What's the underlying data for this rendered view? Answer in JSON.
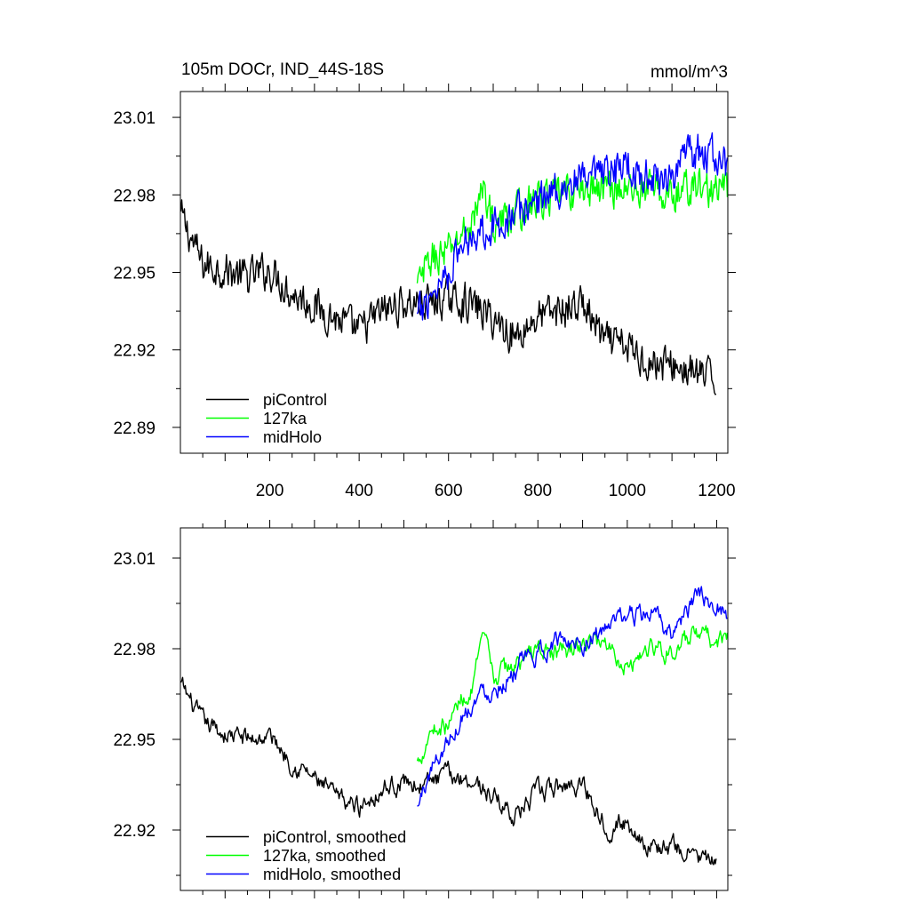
{
  "chart_data": [
    {
      "type": "line",
      "title": "105m DOCr, IND_44S-18S",
      "units": "mmol/m^3",
      "xlabel": "",
      "ylabel": "",
      "xlim": [
        0,
        1225
      ],
      "ylim": [
        22.88,
        23.02
      ],
      "x_ticks": [
        200,
        400,
        600,
        800,
        1000,
        1200
      ],
      "x_tick_labels": [
        "200",
        "400",
        "600",
        "800",
        "1000",
        "1200"
      ],
      "y_ticks": [
        22.89,
        22.92,
        22.95,
        22.98,
        23.01
      ],
      "y_tick_labels": [
        "22.89",
        "22.92",
        "22.95",
        "22.98",
        "23.01"
      ],
      "legend_position": "bottom-left",
      "series": [
        {
          "name": "piControl",
          "color": "#000000",
          "x": [
            1,
            50,
            100,
            150,
            200,
            250,
            300,
            350,
            400,
            450,
            500,
            550,
            600,
            650,
            700,
            750,
            800,
            850,
            900,
            950,
            1000,
            1050,
            1100,
            1150,
            1200
          ],
          "y": [
            22.972,
            22.953,
            22.951,
            22.948,
            22.951,
            22.942,
            22.937,
            22.932,
            22.927,
            22.935,
            22.938,
            22.938,
            22.94,
            22.938,
            22.932,
            22.925,
            22.933,
            22.935,
            22.938,
            22.923,
            22.921,
            22.915,
            22.914,
            22.911,
            22.908
          ]
        },
        {
          "name": "127ka",
          "color": "#00ff00",
          "x": [
            530,
            560,
            600,
            630,
            650,
            680,
            700,
            750,
            800,
            850,
            900,
            950,
            1000,
            1050,
            1100,
            1150,
            1200,
            1225
          ],
          "y": [
            22.944,
            22.955,
            22.958,
            22.965,
            22.968,
            22.983,
            22.968,
            22.973,
            22.978,
            22.98,
            22.982,
            22.983,
            22.982,
            22.983,
            22.979,
            22.984,
            22.981,
            22.983
          ]
        },
        {
          "name": "midHolo",
          "color": "#0000ff",
          "x": [
            530,
            560,
            600,
            630,
            650,
            680,
            700,
            750,
            800,
            850,
            900,
            950,
            1000,
            1050,
            1100,
            1150,
            1200,
            1225
          ],
          "y": [
            22.932,
            22.942,
            22.951,
            22.96,
            22.965,
            22.967,
            22.968,
            22.973,
            22.978,
            22.983,
            22.985,
            22.987,
            22.992,
            22.986,
            22.988,
            22.997,
            22.995,
            22.99
          ]
        }
      ]
    },
    {
      "type": "line",
      "title": "",
      "xlabel": "",
      "ylabel": "",
      "xlim": [
        0,
        1225
      ],
      "ylim": [
        22.9,
        23.02
      ],
      "x_ticks": [
        200,
        400,
        600,
        800,
        1000,
        1200
      ],
      "y_ticks": [
        22.92,
        22.95,
        22.98,
        23.01
      ],
      "y_tick_labels": [
        "22.92",
        "22.95",
        "22.98",
        "23.01"
      ],
      "legend_position": "bottom-left",
      "series": [
        {
          "name": "piControl, smoothed",
          "color": "#000000",
          "x": [
            1,
            50,
            100,
            150,
            200,
            250,
            300,
            350,
            400,
            450,
            500,
            550,
            600,
            650,
            700,
            750,
            800,
            850,
            900,
            950,
            1000,
            1050,
            1100,
            1150,
            1200
          ],
          "y": [
            22.968,
            22.955,
            22.952,
            22.95,
            22.951,
            22.943,
            22.937,
            22.93,
            22.928,
            22.934,
            22.936,
            22.935,
            22.938,
            22.937,
            22.931,
            22.925,
            22.932,
            22.934,
            22.936,
            22.922,
            22.922,
            22.915,
            22.914,
            22.912,
            22.908
          ]
        },
        {
          "name": "127ka, smoothed",
          "color": "#00ff00",
          "x": [
            530,
            560,
            600,
            630,
            650,
            680,
            700,
            750,
            800,
            850,
            900,
            950,
            1000,
            1050,
            1100,
            1150,
            1200,
            1225
          ],
          "y": [
            22.942,
            22.954,
            22.955,
            22.964,
            22.966,
            22.983,
            22.97,
            22.975,
            22.98,
            22.978,
            22.981,
            22.983,
            22.974,
            22.981,
            22.979,
            22.984,
            22.982,
            22.984
          ]
        },
        {
          "name": "midHolo, smoothed",
          "color": "#0000ff",
          "x": [
            530,
            560,
            600,
            630,
            650,
            680,
            700,
            750,
            800,
            850,
            900,
            950,
            1000,
            1050,
            1100,
            1150,
            1200,
            1225
          ],
          "y": [
            22.927,
            22.94,
            22.95,
            22.958,
            22.962,
            22.966,
            22.967,
            22.973,
            22.978,
            22.983,
            22.983,
            22.986,
            22.991,
            22.991,
            22.985,
            22.996,
            22.996,
            22.99
          ]
        }
      ]
    }
  ]
}
